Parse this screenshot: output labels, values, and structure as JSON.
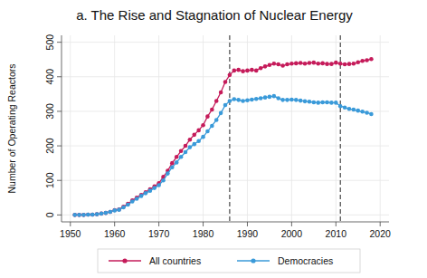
{
  "chart_data": {
    "type": "line",
    "title": "a. The Rise and Stagnation of Nuclear Energy",
    "y_label": "Number of Operating Reactors",
    "x": [
      1951,
      1952,
      1953,
      1954,
      1955,
      1956,
      1957,
      1958,
      1959,
      1960,
      1961,
      1962,
      1963,
      1964,
      1965,
      1966,
      1967,
      1968,
      1969,
      1970,
      1971,
      1972,
      1973,
      1974,
      1975,
      1976,
      1977,
      1978,
      1979,
      1980,
      1981,
      1982,
      1983,
      1984,
      1985,
      1986,
      1987,
      1988,
      1989,
      1990,
      1991,
      1992,
      1993,
      1994,
      1995,
      1996,
      1997,
      1998,
      1999,
      2000,
      2001,
      2002,
      2003,
      2004,
      2005,
      2006,
      2007,
      2008,
      2009,
      2010,
      2011,
      2012,
      2013,
      2014,
      2015,
      2016,
      2017,
      2018
    ],
    "series": [
      {
        "name": "All countries",
        "color": "#c51b5a",
        "marker": "circle",
        "values": [
          0,
          0,
          0,
          1,
          1,
          2,
          4,
          6,
          9,
          14,
          16,
          24,
          32,
          42,
          50,
          58,
          66,
          74,
          83,
          92,
          110,
          128,
          150,
          168,
          185,
          200,
          218,
          232,
          245,
          260,
          285,
          305,
          330,
          355,
          385,
          405,
          418,
          420,
          416,
          418,
          420,
          418,
          425,
          430,
          434,
          438,
          436,
          432,
          436,
          438,
          439,
          440,
          438,
          440,
          441,
          438,
          439,
          437,
          437,
          441,
          438,
          436,
          437,
          438,
          442,
          446,
          448,
          451
        ]
      },
      {
        "name": "Democracies",
        "color": "#3a9ad9",
        "marker": "circle",
        "values": [
          0,
          0,
          0,
          1,
          1,
          2,
          4,
          6,
          9,
          13,
          15,
          22,
          30,
          39,
          47,
          55,
          63,
          70,
          78,
          86,
          100,
          120,
          138,
          152,
          168,
          182,
          196,
          205,
          214,
          226,
          242,
          258,
          275,
          295,
          318,
          330,
          335,
          333,
          330,
          332,
          334,
          336,
          338,
          340,
          342,
          344,
          338,
          333,
          333,
          334,
          333,
          331,
          329,
          328,
          326,
          325,
          326,
          326,
          325,
          325,
          315,
          311,
          307,
          305,
          302,
          299,
          296,
          292
        ]
      }
    ],
    "xlim": [
      1948,
      2022
    ],
    "xticks": [
      1950,
      1960,
      1970,
      1980,
      1990,
      2000,
      2010,
      2020
    ],
    "ylim": [
      -20,
      520
    ],
    "yticks": [
      0,
      100,
      200,
      300,
      400,
      500
    ],
    "vlines": [
      1986,
      2011
    ],
    "grid": true,
    "legend": "bottom"
  }
}
